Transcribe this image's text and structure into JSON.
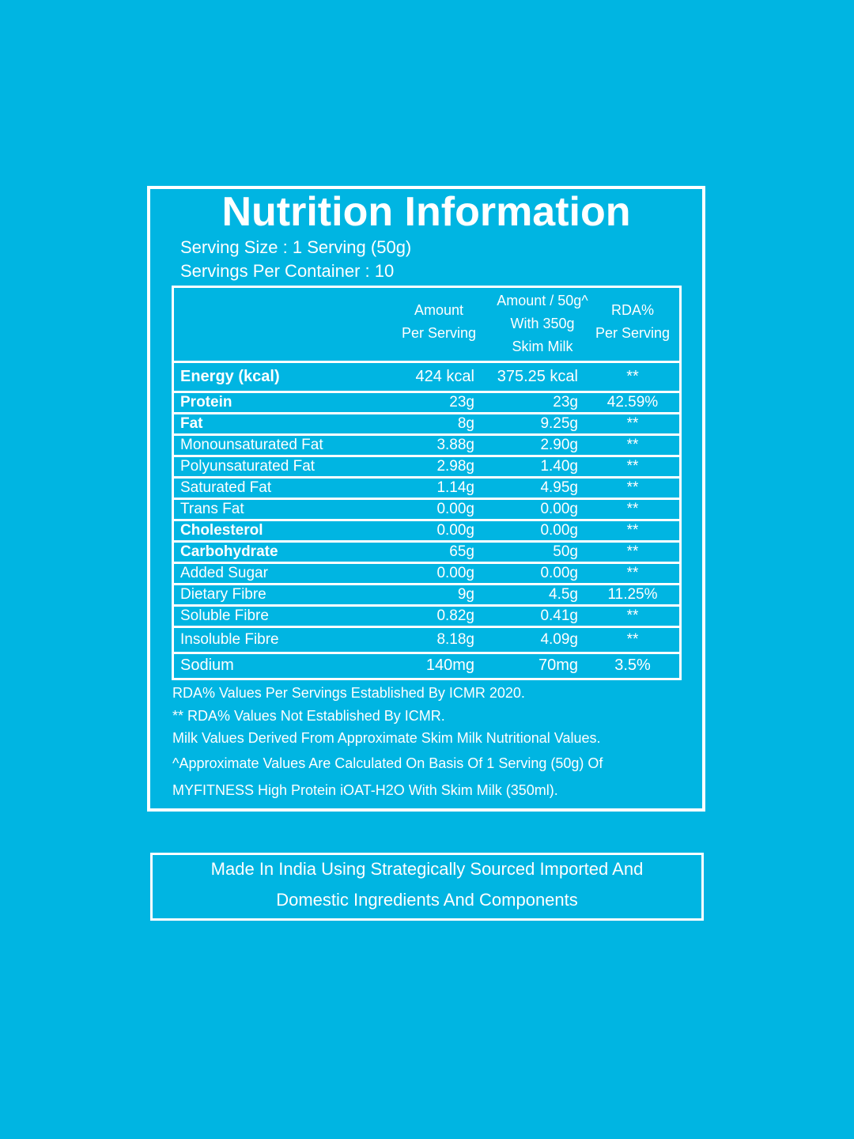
{
  "title": "Nutrition Information",
  "serving_size": "Serving Size : 1 Serving (50g)",
  "servings_per_container": "Servings Per Container : 10",
  "table": {
    "header": [
      [
        "Amount",
        "Per Serving"
      ],
      [
        "Amount / 50g^",
        "With 350g",
        "Skim Milk"
      ],
      [
        "RDA%",
        "Per Serving"
      ]
    ],
    "rows": [
      [
        "Energy (kcal)",
        "424 kcal",
        "375.25 kcal",
        "**"
      ],
      [
        "Protein",
        "23g",
        "23g",
        "42.59%"
      ],
      [
        "Fat",
        "8g",
        "9.25g",
        "**"
      ],
      [
        "Monounsaturated Fat",
        "3.88g",
        "2.90g",
        "**"
      ],
      [
        "Polyunsaturated Fat",
        "2.98g",
        "1.40g",
        "**"
      ],
      [
        "Saturated Fat",
        "1.14g",
        "4.95g",
        "**"
      ],
      [
        "Trans Fat",
        "0.00g",
        "0.00g",
        "**"
      ],
      [
        "Cholesterol",
        "0.00g",
        "0.00g",
        "**"
      ],
      [
        "Carbohydrate",
        "65g",
        "50g",
        "**"
      ],
      [
        "Added Sugar",
        "0.00g",
        "0.00g",
        "**"
      ],
      [
        "Dietary Fibre",
        "9g",
        "4.5g",
        "11.25%"
      ],
      [
        "Soluble Fibre",
        "0.82g",
        "0.41g",
        "**"
      ],
      [
        "Insoluble Fibre",
        "8.18g",
        "4.09g",
        "**"
      ],
      [
        "Sodium",
        "140mg",
        "70mg",
        "3.5%"
      ]
    ]
  },
  "notes": [
    "RDA%  Values Per Servings Established By ICMR 2020.",
    "** RDA%  Values Not Established By ICMR.",
    "Milk Values Derived From Approximate Skim Milk Nutritional Values.",
    "^Approximate Values Are Calculated On Basis Of 1 Serving (50g) Of",
    "MYFITNESS High Protein iOAT-H2O With Skim Milk (350ml)."
  ],
  "footer": [
    "Made In India Using Strategically Sourced Imported And",
    "Domestic Ingredients And Components"
  ]
}
